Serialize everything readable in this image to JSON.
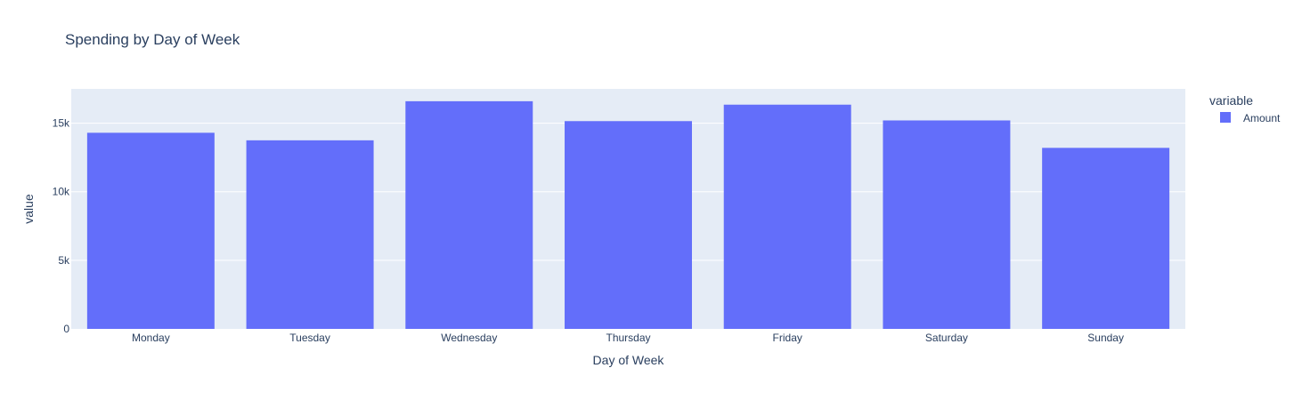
{
  "chart_data": {
    "type": "bar",
    "title": "Spending by Day of Week",
    "xlabel": "Day of Week",
    "ylabel": "value",
    "categories": [
      "Monday",
      "Tuesday",
      "Wednesday",
      "Thursday",
      "Friday",
      "Saturday",
      "Sunday"
    ],
    "series": [
      {
        "name": "Amount",
        "values": [
          14300,
          13750,
          16600,
          15150,
          16350,
          15200,
          13200
        ]
      }
    ],
    "ylim": [
      0,
      17500
    ],
    "yticks": [
      0,
      5000,
      10000,
      15000
    ],
    "ytick_labels": [
      "0",
      "5k",
      "10k",
      "15k"
    ],
    "legend_title": "variable",
    "legend_position": "top-right",
    "grid": true,
    "colors": {
      "bar": "#636efa",
      "plot_bg": "#e5ecf6",
      "grid": "#ffffff",
      "text": "#2a3f5f"
    }
  }
}
